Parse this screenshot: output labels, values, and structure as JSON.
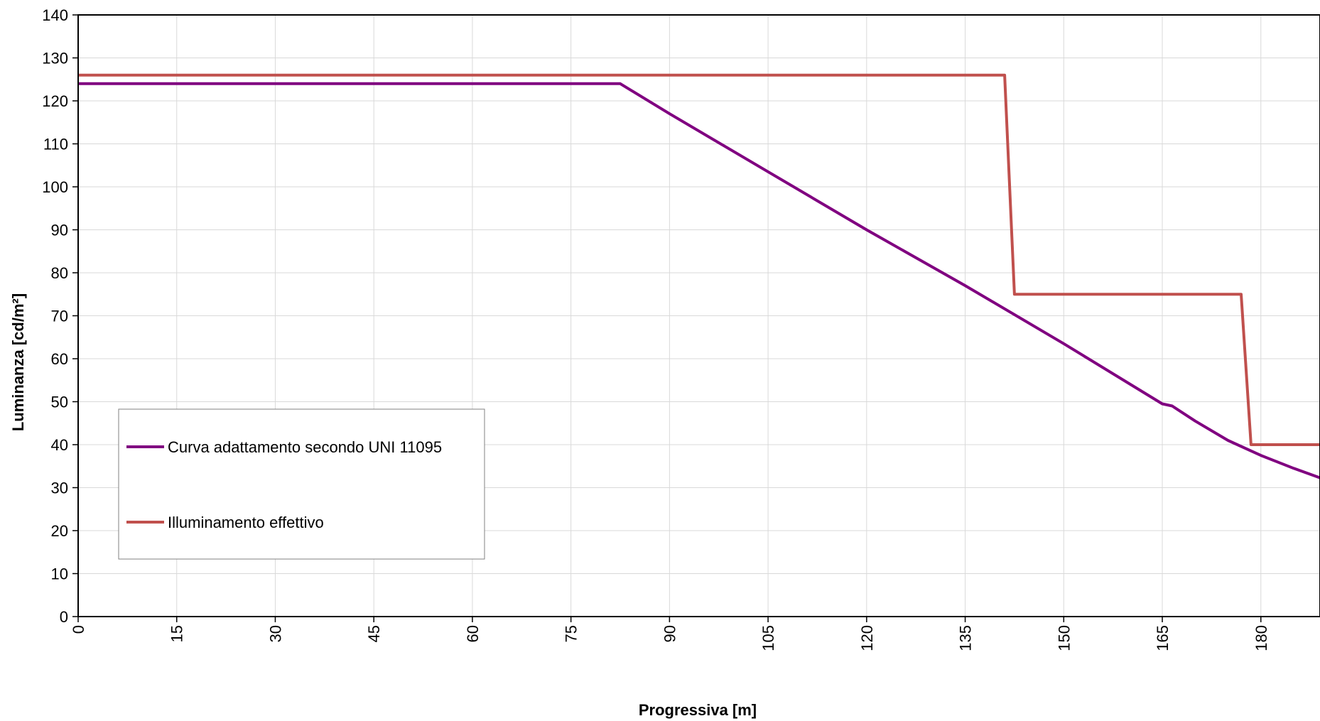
{
  "chart_data": {
    "type": "line",
    "xlabel": "Progressiva [m]",
    "ylabel": "Luminanza [cd/m²]",
    "xlim": [
      0,
      189
    ],
    "ylim": [
      0,
      140
    ],
    "xticks": [
      0,
      15,
      30,
      45,
      60,
      75,
      90,
      105,
      120,
      135,
      150,
      165,
      180
    ],
    "yticks": [
      0,
      10,
      20,
      30,
      40,
      50,
      60,
      70,
      80,
      90,
      100,
      110,
      120,
      130,
      140
    ],
    "grid": true,
    "legend_position": "lower-left",
    "series": [
      {
        "name": "Curva adattamento secondo UNI 11095",
        "color": "#800080",
        "x": [
          0,
          82.5,
          90,
          105,
          120,
          135,
          150,
          165,
          166.5,
          170,
          175,
          180,
          185,
          189
        ],
        "y": [
          124,
          124,
          117,
          103.5,
          90,
          77,
          63.5,
          49.5,
          49,
          45.5,
          41,
          37.5,
          34.5,
          32.3
        ]
      },
      {
        "name": "Illuminamento effettivo",
        "color": "#c0504d",
        "x": [
          0,
          141,
          142.5,
          177,
          178.5,
          189
        ],
        "y": [
          126,
          126,
          75,
          75,
          40,
          40
        ]
      }
    ]
  }
}
